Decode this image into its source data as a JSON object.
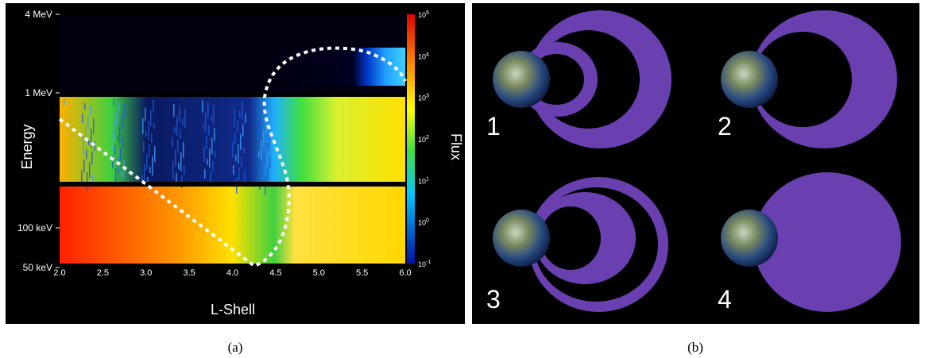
{
  "panel_a": {
    "y_axis_label": "Energy",
    "x_axis_label": "L-Shell",
    "colorbar_label": "Flux",
    "y_tick_labels": [
      "4 MeV",
      "1 MeV",
      "100 keV",
      "50 keV"
    ],
    "x_tick_labels": [
      "2.0",
      "2.5",
      "3.0",
      "3.5",
      "4.0",
      "4.5",
      "5.0",
      "5.5",
      "6.0"
    ],
    "colorbar_ticks": [
      {
        "base": "10",
        "exponent": "5"
      },
      {
        "base": "10",
        "exponent": "4"
      },
      {
        "base": "10",
        "exponent": "3"
      },
      {
        "base": "10",
        "exponent": "2"
      },
      {
        "base": "10",
        "exponent": "1"
      },
      {
        "base": "10",
        "exponent": "0"
      },
      {
        "base": "10",
        "exponent": "-1"
      }
    ],
    "caption": "(a)"
  },
  "panel_b": {
    "labels": [
      "1",
      "2",
      "3",
      "4"
    ],
    "caption": "(b)"
  }
}
